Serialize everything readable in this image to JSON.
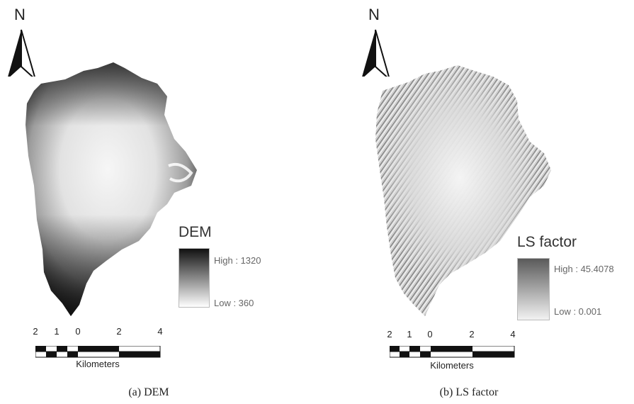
{
  "panels": [
    {
      "north_label": "N",
      "legend": {
        "title": "DEM",
        "high": "High : 1320",
        "low": "Low : 360",
        "colors": {
          "high": "#111111",
          "low": "#ffffff"
        }
      },
      "scale": {
        "ticks": [
          "2",
          "1",
          "0",
          "2",
          "4"
        ],
        "unit": "Kilometers"
      },
      "caption": "(a)  DEM"
    },
    {
      "north_label": "N",
      "legend": {
        "title": "LS factor",
        "high": "High : 45.4078",
        "low": "Low : 0.001",
        "colors": {
          "high": "#5a5a5a",
          "low": "#f2f2f2"
        }
      },
      "scale": {
        "ticks": [
          "2",
          "1",
          "0",
          "2",
          "4"
        ],
        "unit": "Kilometers"
      },
      "caption": "(b)  LS  factor"
    }
  ]
}
